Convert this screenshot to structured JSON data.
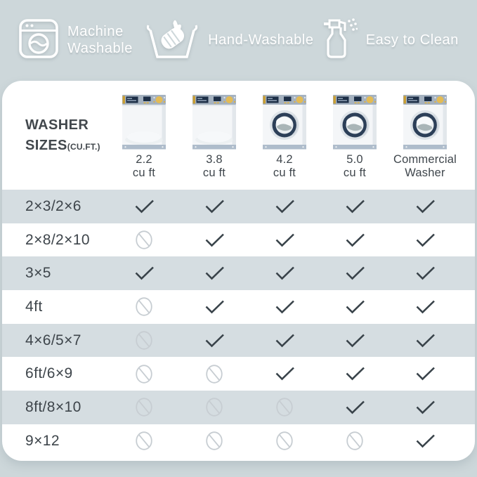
{
  "features": [
    {
      "icon": "washing-machine-icon",
      "label": "Machine Washable"
    },
    {
      "icon": "hand-wash-icon",
      "label": "Hand-Washable"
    },
    {
      "icon": "spray-bottle-icon",
      "label": "Easy to Clean"
    }
  ],
  "table": {
    "title_line1": "WASHER",
    "title_line2": "SIZES",
    "title_unit": "(CU.FT.)",
    "columns": [
      {
        "label_line1": "2.2",
        "label_line2": "cu ft",
        "washer_type": "top-load"
      },
      {
        "label_line1": "3.8",
        "label_line2": "cu ft",
        "washer_type": "top-load"
      },
      {
        "label_line1": "4.2",
        "label_line2": "cu ft",
        "washer_type": "front-load"
      },
      {
        "label_line1": "5.0",
        "label_line2": "cu ft",
        "washer_type": "front-load"
      },
      {
        "label_line1": "Commercial",
        "label_line2": "Washer",
        "washer_type": "front-load"
      }
    ],
    "rows": [
      {
        "size": "2×3/2×6",
        "values": [
          "check",
          "check",
          "check",
          "check",
          "check"
        ]
      },
      {
        "size": "2×8/2×10",
        "values": [
          "no",
          "check",
          "check",
          "check",
          "check"
        ]
      },
      {
        "size": "3×5",
        "values": [
          "check",
          "check",
          "check",
          "check",
          "check"
        ]
      },
      {
        "size": "4ft",
        "values": [
          "no",
          "check",
          "check",
          "check",
          "check"
        ]
      },
      {
        "size": "4×6/5×7",
        "values": [
          "no",
          "check",
          "check",
          "check",
          "check"
        ]
      },
      {
        "size": "6ft/6×9",
        "values": [
          "no",
          "no",
          "check",
          "check",
          "check"
        ]
      },
      {
        "size": "8ft/8×10",
        "values": [
          "no",
          "no",
          "no",
          "check",
          "check"
        ]
      },
      {
        "size": "9×12",
        "values": [
          "no",
          "no",
          "no",
          "no",
          "check"
        ]
      }
    ]
  },
  "colors": {
    "page_background": "#cdd7da",
    "row_stripe": "#d5dde1",
    "card_background": "#ffffff",
    "check_mark": "#39434a",
    "prohibit_mark": "#c7cdd2",
    "text_dark": "#40474d",
    "banner_icon_text": "#ffffff",
    "washer_panel": "#a5b2c0",
    "washer_display_navy": "#1d2f47",
    "washer_knob_gold": "#e3bb55",
    "washer_door_navy": "#2c3f58"
  }
}
